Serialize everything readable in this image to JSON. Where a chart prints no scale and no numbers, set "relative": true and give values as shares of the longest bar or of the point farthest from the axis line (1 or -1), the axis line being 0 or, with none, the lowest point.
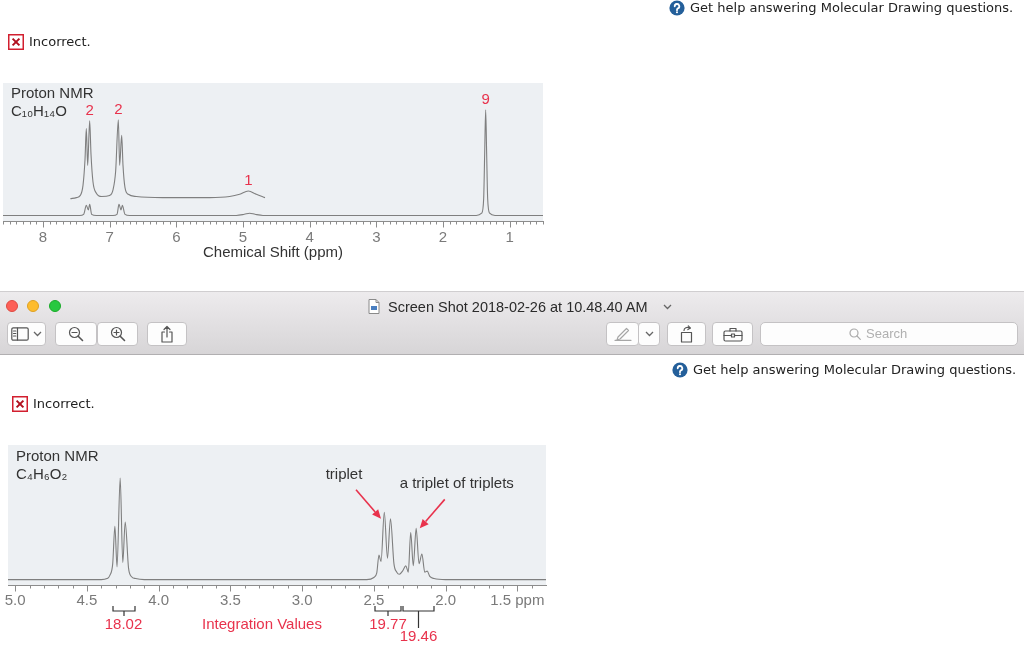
{
  "chart_data": [
    {
      "type": "line",
      "title": "Proton NMR",
      "subtitle": "C₁₀H₁₄O",
      "xlabel": "Chemical Shift (ppm)",
      "relative": true,
      "grid": false,
      "legend": false,
      "marker": "none",
      "xlim": [
        8.6,
        0.5
      ],
      "xticks": [
        {
          "value": 8.6,
          "label": null
        },
        {
          "value": 8.5,
          "label": null
        },
        {
          "value": 8.4,
          "label": null
        },
        {
          "value": 8.3,
          "label": null
        },
        {
          "value": 8.2,
          "label": null
        },
        {
          "value": 8.1,
          "label": null
        },
        8,
        {
          "value": 7.9,
          "label": null
        },
        {
          "value": 7.8,
          "label": null
        },
        {
          "value": 7.7,
          "label": null
        },
        {
          "value": 7.6,
          "label": null
        },
        {
          "value": 7.5,
          "label": null
        },
        {
          "value": 7.4,
          "label": null
        },
        {
          "value": 7.3,
          "label": null
        },
        {
          "value": 7.2,
          "label": null
        },
        {
          "value": 7.1,
          "label": null
        },
        7,
        {
          "value": 6.9,
          "label": null
        },
        {
          "value": 6.8,
          "label": null
        },
        {
          "value": 6.7,
          "label": null
        },
        {
          "value": 6.6,
          "label": null
        },
        {
          "value": 6.5,
          "label": null
        },
        {
          "value": 6.4,
          "label": null
        },
        {
          "value": 6.3,
          "label": null
        },
        {
          "value": 6.2,
          "label": null
        },
        {
          "value": 6.1,
          "label": null
        },
        6,
        {
          "value": 5.9,
          "label": null
        },
        {
          "value": 5.8,
          "label": null
        },
        {
          "value": 5.7,
          "label": null
        },
        {
          "value": 5.6,
          "label": null
        },
        {
          "value": 5.5,
          "label": null
        },
        {
          "value": 5.4,
          "label": null
        },
        {
          "value": 5.3,
          "label": null
        },
        {
          "value": 5.2,
          "label": null
        },
        {
          "value": 5.1,
          "label": null
        },
        5,
        {
          "value": 4.9,
          "label": null
        },
        {
          "value": 4.8,
          "label": null
        },
        {
          "value": 4.7,
          "label": null
        },
        {
          "value": 4.6,
          "label": null
        },
        {
          "value": 4.5,
          "label": null
        },
        {
          "value": 4.4,
          "label": null
        },
        {
          "value": 4.3,
          "label": null
        },
        {
          "value": 4.2,
          "label": null
        },
        {
          "value": 4.1,
          "label": null
        },
        4,
        {
          "value": 3.9,
          "label": null
        },
        {
          "value": 3.8,
          "label": null
        },
        {
          "value": 3.7,
          "label": null
        },
        {
          "value": 3.6,
          "label": null
        },
        {
          "value": 3.5,
          "label": null
        },
        {
          "value": 3.4,
          "label": null
        },
        {
          "value": 3.3,
          "label": null
        },
        {
          "value": 3.2,
          "label": null
        },
        {
          "value": 3.1,
          "label": null
        },
        3,
        {
          "value": 2.9,
          "label": null
        },
        {
          "value": 2.8,
          "label": null
        },
        {
          "value": 2.7,
          "label": null
        },
        {
          "value": 2.6,
          "label": null
        },
        {
          "value": 2.5,
          "label": null
        },
        {
          "value": 2.4,
          "label": null
        },
        {
          "value": 2.3,
          "label": null
        },
        {
          "value": 2.2,
          "label": null
        },
        {
          "value": 2.1,
          "label": null
        },
        2,
        {
          "value": 1.9,
          "label": null
        },
        {
          "value": 1.8,
          "label": null
        },
        {
          "value": 1.7,
          "label": null
        },
        {
          "value": 1.6,
          "label": null
        },
        {
          "value": 1.5,
          "label": null
        },
        {
          "value": 1.4,
          "label": null
        },
        {
          "value": 1.3,
          "label": null
        },
        {
          "value": 1.2,
          "label": null
        },
        {
          "value": 1.1,
          "label": null
        },
        1,
        {
          "value": 0.9,
          "label": null
        },
        {
          "value": 0.8,
          "label": null
        },
        {
          "value": 0.7,
          "label": null
        },
        {
          "value": 0.6,
          "label": null
        },
        {
          "value": 0.5,
          "label": null
        }
      ],
      "series": [
        {
          "color": "#7f7f7f",
          "x": [
            8.6,
            7.45,
            7.39,
            7.35,
            7.32,
            7.3,
            7.27,
            7.2,
            6.95,
            6.89,
            6.86,
            6.83,
            6.81,
            6.77,
            6.7,
            5.1,
            4.98,
            4.9,
            4.82,
            4.7,
            1.5,
            1.42,
            1.39,
            1.375,
            1.36,
            1.345,
            1.33,
            1.3,
            1.22,
            0.5
          ],
          "values": [
            0.05,
            0.05,
            0.06,
            0.14,
            0.1,
            0.15,
            0.06,
            0.05,
            0.05,
            0.06,
            0.15,
            0.1,
            0.14,
            0.06,
            0.05,
            0.05,
            0.06,
            0.07,
            0.06,
            0.05,
            0.05,
            0.07,
            0.2,
            0.6,
            1,
            0.6,
            0.2,
            0.07,
            0.05,
            0.05
          ]
        },
        {
          "color": "#7f7f7f",
          "x": [
            7.59,
            7.5,
            7.44,
            7.4,
            7.37,
            7.35,
            7.33,
            7.3,
            7.28,
            7.25,
            7.2,
            7.12,
            7.0,
            6.95,
            6.91,
            6.87,
            6.85,
            6.82,
            6.8,
            6.77,
            6.72,
            6.6,
            6.2,
            5.5,
            5.2,
            5.05,
            4.92,
            4.8,
            4.67
          ],
          "values": [
            0.2,
            0.21,
            0.23,
            0.32,
            0.55,
            0.83,
            0.5,
            0.9,
            0.6,
            0.35,
            0.25,
            0.22,
            0.23,
            0.28,
            0.45,
            0.91,
            0.5,
            0.77,
            0.5,
            0.3,
            0.24,
            0.22,
            0.21,
            0.21,
            0.22,
            0.24,
            0.27,
            0.24,
            0.21
          ]
        }
      ],
      "annotations": [
        "Get help answering Molecular Drawing questions.",
        "Incorrect.",
        {
          "text": "2",
          "x": 7.3,
          "y": 0.9
        },
        {
          "text": "2",
          "x": 6.87,
          "y": 0.91
        },
        {
          "text": "1",
          "x": 4.92,
          "y": 0.27
        },
        {
          "text": "9",
          "x": 1.36,
          "y": 1
        }
      ]
    },
    {
      "type": "line",
      "title": "Proton NMR",
      "subtitle": "C₄H₆O₂",
      "relative": true,
      "grid": false,
      "legend": false,
      "marker": "none",
      "xlim": [
        5.05,
        1.3
      ],
      "xticks": [
        {
          "value": 5,
          "label": "5.0"
        },
        {
          "value": 4.9,
          "label": null
        },
        {
          "value": 4.8,
          "label": null
        },
        {
          "value": 4.7,
          "label": null
        },
        {
          "value": 4.6,
          "label": null
        },
        4.5,
        {
          "value": 4.4,
          "label": null
        },
        {
          "value": 4.3,
          "label": null
        },
        {
          "value": 4.2,
          "label": null
        },
        {
          "value": 4.1,
          "label": null
        },
        {
          "value": 4,
          "label": "4.0"
        },
        {
          "value": 3.9,
          "label": null
        },
        {
          "value": 3.8,
          "label": null
        },
        {
          "value": 3.7,
          "label": null
        },
        {
          "value": 3.6,
          "label": null
        },
        3.5,
        {
          "value": 3.4,
          "label": null
        },
        {
          "value": 3.3,
          "label": null
        },
        {
          "value": 3.2,
          "label": null
        },
        {
          "value": 3.1,
          "label": null
        },
        {
          "value": 3,
          "label": "3.0"
        },
        {
          "value": 2.9,
          "label": null
        },
        {
          "value": 2.8,
          "label": null
        },
        {
          "value": 2.7,
          "label": null
        },
        {
          "value": 2.6,
          "label": null
        },
        2.5,
        {
          "value": 2.4,
          "label": null
        },
        {
          "value": 2.3,
          "label": null
        },
        {
          "value": 2.2,
          "label": null
        },
        {
          "value": 2.1,
          "label": null
        },
        {
          "value": 2,
          "label": "2.0"
        },
        {
          "value": 1.9,
          "label": null
        },
        {
          "value": 1.8,
          "label": null
        },
        {
          "value": 1.7,
          "label": null
        },
        {
          "value": 1.6,
          "label": null
        },
        {
          "value": 1.5,
          "label": "1.5 ppm"
        },
        {
          "value": 1.4,
          "label": null
        }
      ],
      "series": [
        {
          "color": "#7f7f7f",
          "x": [
            5.05,
            4.4,
            4.36,
            4.34,
            4.32,
            4.305,
            4.29,
            4.268,
            4.25,
            4.233,
            4.21,
            4.19,
            4.16,
            4.1,
            3.0,
            2.55,
            2.5,
            2.48,
            2.464,
            2.45,
            2.427,
            2.405,
            2.384,
            2.36,
            2.34,
            2.322,
            2.3,
            2.277,
            2.26,
            2.243,
            2.225,
            2.205,
            2.185,
            2.165,
            2.145,
            2.128,
            2.11,
            2.08,
            2.0,
            1.3
          ],
          "values": [
            0.05,
            0.05,
            0.06,
            0.09,
            0.2,
            0.55,
            0.17,
            1,
            0.21,
            0.59,
            0.16,
            0.08,
            0.06,
            0.05,
            0.05,
            0.05,
            0.07,
            0.11,
            0.28,
            0.22,
            0.68,
            0.25,
            0.62,
            0.2,
            0.12,
            0.1,
            0.13,
            0.18,
            0.12,
            0.49,
            0.18,
            0.53,
            0.2,
            0.29,
            0.12,
            0.13,
            0.08,
            0.06,
            0.05,
            0.05
          ]
        }
      ],
      "annotations": [
        "Screen Shot 2018-02-26 at 10.48.40 AM",
        "Search",
        "Get help answering Molecular Drawing questions.",
        "Incorrect.",
        {
          "text": "triplet",
          "x": 2.45,
          "y": 0.62
        },
        {
          "text": "a triplet of triplets",
          "x": 2.18,
          "y": 0.53
        },
        "18.02",
        "Integration Values",
        "19.77",
        "19.46"
      ]
    }
  ]
}
